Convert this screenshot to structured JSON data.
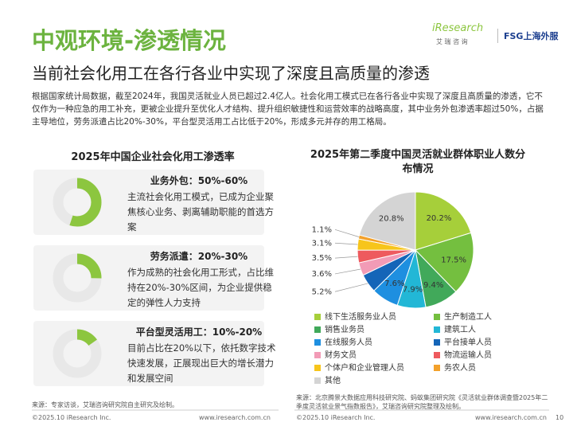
{
  "header": {
    "title": "中观环境-渗透情况",
    "subtitle": "当前社会化用工在各行各业中实现了深度且高质量的渗透",
    "logo_iresearch": "iResearch",
    "logo_iresearch_cn": "艾 瑞 咨 询",
    "logo_fsg": "FSG上海外服"
  },
  "intro": "根据国家统计局数据，截至2024年，我国灵活就业人员已超过2.4亿人。社会化用工模式已在各行各业中实现了深度且高质量的渗透，它不仅作为一种应急的用工补充，更被企业提升至优化人才结构、提升组织敏捷性和运营效率的战略高度，其中业务外包渗透率超过50%，占据主导地位，劳务派遣占比20%-30%，平台型灵活用工占比低于20%，形成多元并存的用工格局。",
  "left_panel": {
    "title": "2025年中国企业社会化用工渗透率",
    "items": [
      {
        "heading": "业务外包：50%-60%",
        "text": "主流社会化用工模式，已成为企业聚焦核心业务、剥离辅助职能的首选方案"
      },
      {
        "heading": "劳务派遣：20%-30%",
        "text": "作为成熟的社会化用工形式，占比维持在20%-30%区间，为企业提供稳定的弹性人力支持"
      },
      {
        "heading": "平台型灵活用工：10%-20%",
        "text": "目前占比在20%以下，依托数字技术快速发展，正展现出巨大的增长潜力和发展空间"
      }
    ]
  },
  "chart_data": {
    "type": "pie",
    "title": "2025年第二季度中国灵活就业群体职业人数分布情况",
    "categories": [
      "线下生活服务业人员",
      "生产制造工人",
      "销售业务员",
      "建筑工人",
      "在线服务人员",
      "平台接单人员",
      "财务文员",
      "物流运输人员",
      "个体户和企业管理人员",
      "务农人员",
      "其他"
    ],
    "values": [
      20.2,
      17.5,
      9.4,
      7.9,
      7.6,
      5.2,
      3.6,
      3.5,
      3.1,
      1.1,
      20.8
    ],
    "value_labels": [
      "20.2%",
      "17.5%",
      "9.4%",
      "7.9%",
      "7.6%",
      "5.2%",
      "3.6%",
      "3.5%",
      "3.1%",
      "1.1%",
      "20.8%"
    ],
    "colors": [
      "#a6cf3a",
      "#74bf3f",
      "#41a95a",
      "#22b7d6",
      "#1e8fe0",
      "#1565b8",
      "#f29bb6",
      "#ee5a5e",
      "#f7c51b",
      "#f3a12b",
      "#d4d4d4"
    ]
  },
  "sources": {
    "left": "来源：专家访谈，艾瑞咨询研究院自主研究及绘制。",
    "right": "来源：北京腾景大数据应用科技研究院、蚂蚁集团研究院《灵活就业群体调查暨2025年二季度灵活就业景气指数报告》，艾瑞咨询研究院整理及绘制。"
  },
  "footer": {
    "copyright_left": "©2025.10 iResearch Inc.",
    "url_left": "www.iresearch.com.cn",
    "copyright_right": "©2025.10 iResearch Inc.",
    "url_right": "www.iresearch.com.cn",
    "page": "10"
  }
}
